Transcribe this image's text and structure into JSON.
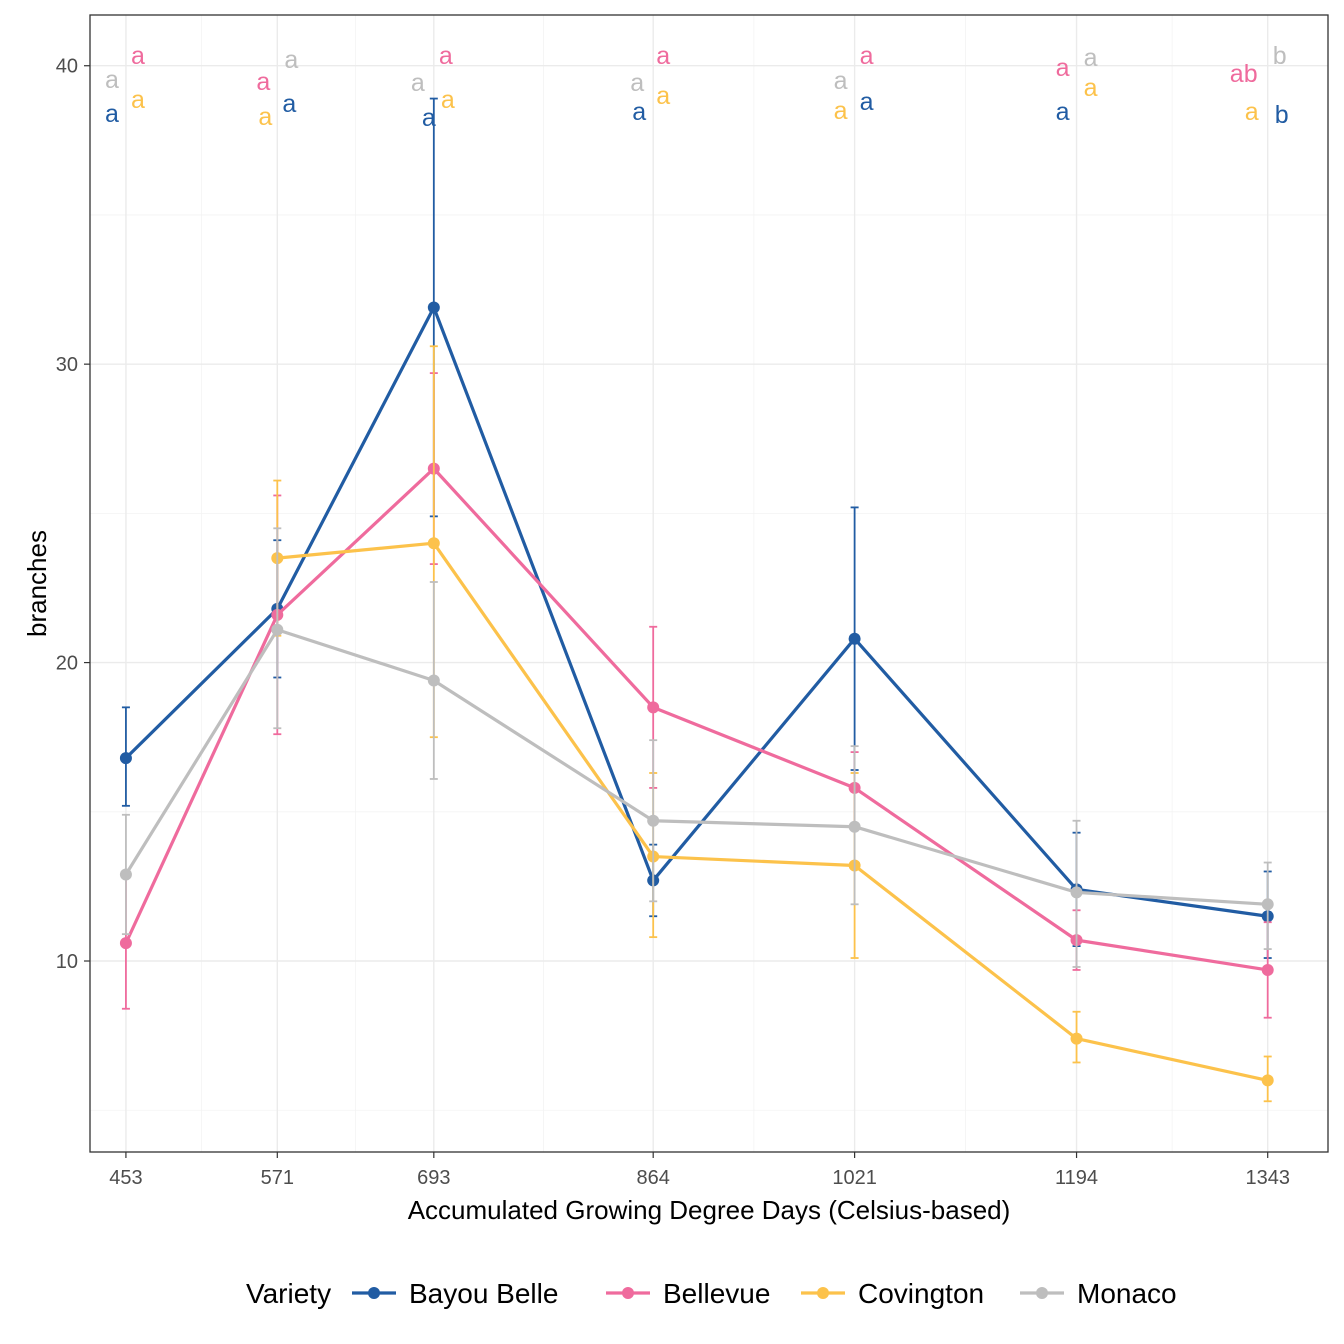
{
  "chart_data": {
    "type": "line",
    "xlabel": "Accumulated Growing Degree Days (Celsius-based)",
    "ylabel": "branches",
    "x": [
      453,
      571,
      693,
      864,
      1021,
      1194,
      1343
    ],
    "xlim": [
      425,
      1390
    ],
    "ylim": [
      3.6,
      41.7
    ],
    "yticks": [
      10,
      20,
      30,
      40
    ],
    "grid": true,
    "legend": {
      "title": "Variety",
      "position": "bottom"
    },
    "series": [
      {
        "name": "Bayou Belle",
        "color": "#215ca3",
        "values": [
          16.8,
          21.8,
          31.9,
          12.7,
          20.8,
          12.4,
          11.5
        ],
        "err_low": [
          15.2,
          19.5,
          24.9,
          11.5,
          16.4,
          10.5,
          10.1
        ],
        "err_high": [
          18.5,
          24.1,
          38.9,
          13.9,
          25.2,
          14.3,
          13.0
        ],
        "letters": [
          "a",
          "a",
          "a",
          "a",
          "a",
          "a",
          "b"
        ]
      },
      {
        "name": "Bellevue",
        "color": "#ef6b9d",
        "values": [
          10.6,
          21.6,
          26.5,
          18.5,
          15.8,
          10.7,
          9.7
        ],
        "err_low": [
          8.4,
          17.6,
          23.3,
          15.8,
          14.6,
          9.7,
          8.1
        ],
        "err_high": [
          12.8,
          25.6,
          29.7,
          21.2,
          17.0,
          11.7,
          11.3
        ],
        "letters": [
          "a",
          "a",
          "a",
          "a",
          "a",
          "a",
          "ab"
        ]
      },
      {
        "name": "Covington",
        "color": "#fcc24b",
        "values": [
          null,
          23.5,
          24.0,
          13.5,
          13.2,
          7.4,
          6.0
        ],
        "err_low": [
          null,
          20.9,
          17.5,
          10.8,
          10.1,
          6.6,
          5.3
        ],
        "err_high": [
          null,
          26.1,
          30.6,
          16.3,
          16.3,
          8.3,
          6.8
        ],
        "letters": [
          "a",
          "a",
          "a",
          "a",
          "a",
          "a",
          "a"
        ]
      },
      {
        "name": "Monaco",
        "color": "#bebebe",
        "values": [
          12.9,
          21.1,
          19.4,
          14.7,
          14.5,
          12.3,
          11.9
        ],
        "err_low": [
          10.9,
          17.8,
          16.1,
          12.0,
          11.9,
          9.8,
          10.4
        ],
        "err_high": [
          14.9,
          24.5,
          22.7,
          17.4,
          17.2,
          14.7,
          13.3
        ],
        "letters": [
          "a",
          "a",
          "a",
          "a",
          "a",
          "a",
          "b"
        ]
      }
    ]
  }
}
